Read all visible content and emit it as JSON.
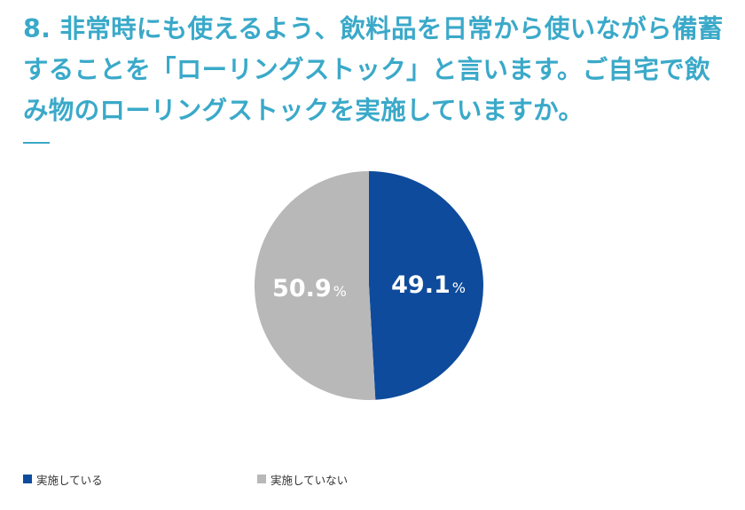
{
  "question": {
    "lines": [
      "8. 非常時にも使えるよう、飲料品を日常から使いながら備蓄",
      "することを「ローリングストック」と言います。ご自宅で飲",
      "み物のローリングストックを実施していますか。"
    ]
  },
  "colors": {
    "title": "#3aa9c9",
    "series_yes": "#0e4b9c",
    "series_no": "#b8b8b8",
    "label_text": "#ffffff"
  },
  "chart_data": {
    "type": "pie",
    "slices": [
      {
        "label": "実施している",
        "value": 49.1,
        "display": "49.1",
        "unit": "%",
        "color": "#0e4b9c"
      },
      {
        "label": "実施していない",
        "value": 50.9,
        "display": "50.9",
        "unit": "%",
        "color": "#b8b8b8"
      }
    ],
    "start_angle_deg": 0,
    "direction": "clockwise",
    "legend_position": "bottom-left"
  }
}
